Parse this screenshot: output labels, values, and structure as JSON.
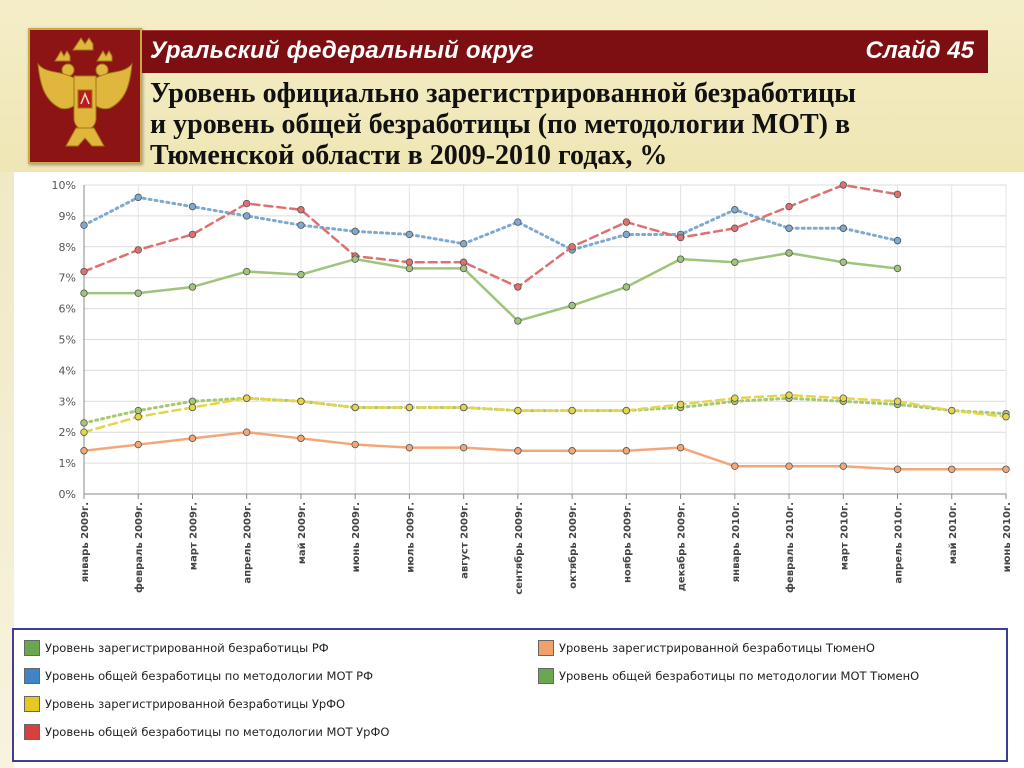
{
  "header": {
    "region_title": "Уральский федеральный округ",
    "slide_label": "Слайд 45",
    "heading_lines": [
      "Уровень официально зарегистрированной безработицы",
      "и уровень общей безработицы (по методологии МОТ) в",
      "Тюменской области в 2009-2010 годах, %"
    ],
    "emblem_icon": "double-headed-eagle-coat-of-arms-icon"
  },
  "colors": {
    "title_bar": "#7d0f12",
    "header_background": "#f1e9bd",
    "legend_border": "#3b3f99"
  },
  "chart_data": {
    "type": "line",
    "title": "",
    "xlabel": "",
    "ylabel": "",
    "ylim": [
      0,
      10
    ],
    "y_ticks": [
      "0%",
      "1%",
      "2%",
      "3%",
      "4%",
      "5%",
      "6%",
      "7%",
      "8%",
      "9%",
      "10%"
    ],
    "grid": "on",
    "legend_position": "bottom",
    "categories": [
      "январь 2009г.",
      "февраль 2009г.",
      "март 2009г.",
      "апрель 2009г.",
      "май 2009г.",
      "июнь 2009г.",
      "июль 2009г.",
      "август 2009г.",
      "сентябрь 2009г.",
      "октябрь 2009г.",
      "ноябрь 2009г.",
      "декабрь 2009г.",
      "январь 2010г.",
      "февраль 2010г.",
      "март 2010г.",
      "апрель 2010г.",
      "май 2010г.",
      "июнь 2010г."
    ],
    "series": [
      {
        "name": "Уровень зарегистрированной безработицы РФ",
        "color": "#a5c970",
        "style": "dotted",
        "values": [
          2.3,
          2.7,
          3.0,
          3.1,
          3.0,
          2.8,
          2.8,
          2.8,
          2.7,
          2.7,
          2.7,
          2.8,
          3.0,
          3.1,
          3.0,
          2.9,
          2.7,
          2.6
        ]
      },
      {
        "name": "Уровень общей безработицы по методологии МОТ РФ",
        "color": "#7faad0",
        "style": "dotted",
        "values": [
          8.7,
          9.6,
          9.3,
          9.0,
          8.7,
          8.5,
          8.4,
          8.1,
          8.8,
          7.9,
          8.4,
          8.4,
          9.2,
          8.6,
          8.6,
          8.2,
          null,
          null
        ]
      },
      {
        "name": "Уровень зарегистрированной безработицы УрФО",
        "color": "#e5d54a",
        "style": "dashed",
        "values": [
          2.0,
          2.5,
          2.8,
          3.1,
          3.0,
          2.8,
          2.8,
          2.8,
          2.7,
          2.7,
          2.7,
          2.9,
          3.1,
          3.2,
          3.1,
          3.0,
          2.7,
          2.5
        ]
      },
      {
        "name": "Уровень общей безработицы по методологии МОТ УрФО",
        "color": "#e07070",
        "style": "dashed",
        "values": [
          7.2,
          7.9,
          8.4,
          9.4,
          9.2,
          7.7,
          7.5,
          7.5,
          6.7,
          8.0,
          8.8,
          8.3,
          8.6,
          9.3,
          10.0,
          9.7,
          null,
          null
        ]
      },
      {
        "name": "Уровень зарегистрированной безработицы ТюменО",
        "color": "#f3a779",
        "style": "solid",
        "values": [
          1.4,
          1.6,
          1.8,
          2.0,
          1.8,
          1.6,
          1.5,
          1.5,
          1.4,
          1.4,
          1.4,
          1.5,
          0.9,
          0.9,
          0.9,
          0.8,
          0.8,
          0.8
        ]
      },
      {
        "name": "Уровень общей безработицы по методологии МОТ  ТюменО",
        "color": "#9fc47a",
        "style": "solid",
        "values": [
          6.5,
          6.5,
          6.7,
          7.2,
          7.1,
          7.6,
          7.3,
          7.3,
          5.6,
          6.1,
          6.7,
          7.6,
          7.5,
          7.8,
          7.5,
          7.3,
          null,
          null
        ]
      }
    ],
    "legend_swatches": [
      {
        "label": "Уровень зарегистрированной безработицы РФ",
        "color": "#6aa84f"
      },
      {
        "label": "Уровень зарегистрированной безработицы  ТюменО",
        "color": "#f0a068"
      },
      {
        "label": "Уровень общей безработицы по методологии МОТ РФ",
        "color": "#3d85c6"
      },
      {
        "label": "Уровень общей безработицы по методологии МОТ  ТюменО",
        "color": "#6aa84f"
      },
      {
        "label": "Уровень зарегистрированной безработицы УрФО",
        "color": "#e6c823"
      },
      {
        "label": "Уровень общей безработицы по методологии МОТ УрФО",
        "color": "#d84040"
      }
    ]
  }
}
